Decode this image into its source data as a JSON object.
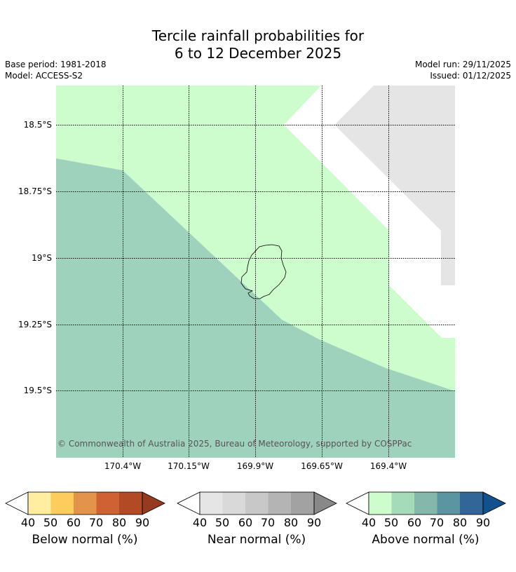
{
  "title": {
    "line1": "Tercile rainfall probabilities for",
    "line2": "6 to 12 December 2025"
  },
  "meta": {
    "base_period": "Base period: 1981-2018",
    "model": "Model: ACCESS-S2",
    "model_run": "Model run: 29/11/2025",
    "issued": "Issued: 01/12/2025"
  },
  "map": {
    "lat_labels": [
      "18.5°S",
      "18.75°S",
      "19°S",
      "19.25°S",
      "19.5°S"
    ],
    "lon_labels": [
      "170.4°W",
      "170.15°W",
      "169.9°W",
      "169.65°W",
      "169.4°W"
    ],
    "copyright": "© Commonwealth of Australia 2025, Bureau of Meteorology, supported by COSPPac",
    "colors": {
      "above_50": "#cdfccd",
      "above_60": "#9ed2bc",
      "near_40": "#e5e5e5",
      "island_outline": "#000000"
    }
  },
  "legend": {
    "ticks": [
      "40",
      "50",
      "60",
      "70",
      "80",
      "90"
    ],
    "below": {
      "label": "Below normal (%)",
      "colors": [
        "#ffeda0",
        "#fecc5c",
        "#e3944a",
        "#cf6232",
        "#b24a26",
        "#963b1f"
      ]
    },
    "near": {
      "label": "Near normal (%)",
      "colors": [
        "#e5e5e5",
        "#d9d9d9",
        "#c8c8c8",
        "#b4b4b4",
        "#a2a2a2",
        "#888888"
      ]
    },
    "above": {
      "label": "Above normal (%)",
      "colors": [
        "#cdfccd",
        "#a6dbb9",
        "#84b8aa",
        "#5c95a2",
        "#326598",
        "#13508e"
      ]
    }
  }
}
